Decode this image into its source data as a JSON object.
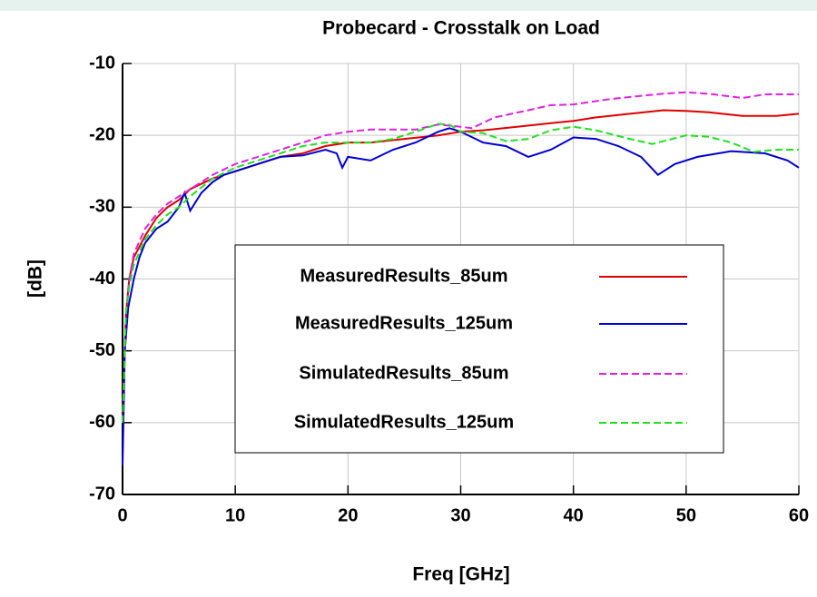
{
  "chart_data": {
    "type": "line",
    "title": "Probecard - Crosstalk on Load",
    "x_label": "Freq [GHz]",
    "y_label": "[dB]",
    "xlim": [
      0,
      60
    ],
    "ylim": [
      -70,
      -10
    ],
    "xticks": [
      0,
      10,
      20,
      30,
      40,
      50,
      60
    ],
    "yticks": [
      -70,
      -60,
      -50,
      -40,
      -30,
      -20,
      -10
    ],
    "grid": true,
    "legend": "center",
    "series": [
      {
        "name": "MeasuredResults_85um",
        "color": "#e00000",
        "dashed": false,
        "x": [
          0,
          0.3,
          0.6,
          1,
          2,
          3,
          4,
          5,
          6,
          8,
          10,
          12,
          14,
          16,
          18,
          20,
          22,
          25,
          28,
          30,
          32,
          35,
          38,
          40,
          42,
          45,
          48,
          50,
          52,
          55,
          58,
          60
        ],
        "values": [
          -60,
          -45,
          -40,
          -37,
          -34,
          -31.5,
          -30,
          -29,
          -27.5,
          -26,
          -25,
          -24,
          -23,
          -22.5,
          -21.5,
          -21,
          -21,
          -20.5,
          -20,
          -19.5,
          -19.3,
          -18.8,
          -18.3,
          -18,
          -17.5,
          -17,
          -16.5,
          -16.6,
          -16.8,
          -17.3,
          -17.3,
          -17
        ]
      },
      {
        "name": "MeasuredResults_125um",
        "color": "#0000d0",
        "dashed": false,
        "x": [
          0,
          0.2,
          0.5,
          1,
          1.5,
          2,
          3,
          4,
          5,
          5.5,
          6,
          7,
          8,
          9,
          10,
          12,
          14,
          16,
          18,
          19,
          19.5,
          20,
          22,
          24,
          26,
          28,
          29,
          30,
          32,
          34,
          36,
          38,
          40,
          42,
          44,
          46,
          47.5,
          49,
          51,
          54,
          57,
          59,
          60
        ],
        "values": [
          -66,
          -50,
          -44,
          -40,
          -37,
          -35,
          -33,
          -32,
          -30,
          -28,
          -30.5,
          -28,
          -26.5,
          -25.5,
          -25,
          -24,
          -23,
          -22.8,
          -22,
          -22.5,
          -24.5,
          -23,
          -23.5,
          -22,
          -21,
          -19.5,
          -19,
          -19.5,
          -21,
          -21.5,
          -23,
          -22,
          -20.3,
          -20.5,
          -21.5,
          -23,
          -25.5,
          -24,
          -23,
          -22.2,
          -22.5,
          -23.5,
          -24.5
        ]
      },
      {
        "name": "SimulatedResults_85um",
        "color": "#e020e0",
        "dashed": true,
        "x": [
          0,
          0.3,
          0.6,
          1,
          2,
          3,
          4,
          6,
          8,
          10,
          12,
          14,
          16,
          18,
          20,
          22,
          26,
          28,
          30,
          31,
          33,
          36,
          38,
          40,
          43,
          46,
          48,
          50,
          52,
          55,
          57,
          60
        ],
        "values": [
          -60,
          -45,
          -40,
          -36.5,
          -33,
          -31,
          -29.5,
          -27.5,
          -25.5,
          -24,
          -23,
          -22,
          -21,
          -20,
          -19.5,
          -19.2,
          -19.2,
          -18.5,
          -18.8,
          -19,
          -17.5,
          -16.5,
          -15.8,
          -15.7,
          -15,
          -14.5,
          -14.2,
          -14,
          -14.2,
          -14.8,
          -14.3,
          -14.3
        ]
      },
      {
        "name": "SimulatedResults_125um",
        "color": "#20e020",
        "dashed": true,
        "x": [
          0,
          0.3,
          0.6,
          1,
          2,
          3,
          4,
          5,
          6,
          8,
          10,
          12,
          14,
          16,
          18,
          20,
          22,
          24,
          26,
          28,
          29,
          30,
          32,
          34,
          36,
          38,
          40,
          42,
          45,
          47,
          50,
          52,
          54,
          56,
          58,
          60
        ],
        "values": [
          -60,
          -45,
          -41,
          -38,
          -34.5,
          -32.5,
          -31,
          -30,
          -28.5,
          -26,
          -24.5,
          -23.5,
          -22.5,
          -21.5,
          -21,
          -21,
          -21,
          -20.5,
          -19.5,
          -18.4,
          -18.5,
          -19.5,
          -19.7,
          -20.8,
          -20.5,
          -19.3,
          -18.8,
          -19.3,
          -20.5,
          -21.2,
          -20,
          -20.2,
          -21,
          -22.3,
          -22,
          -22
        ]
      }
    ]
  }
}
